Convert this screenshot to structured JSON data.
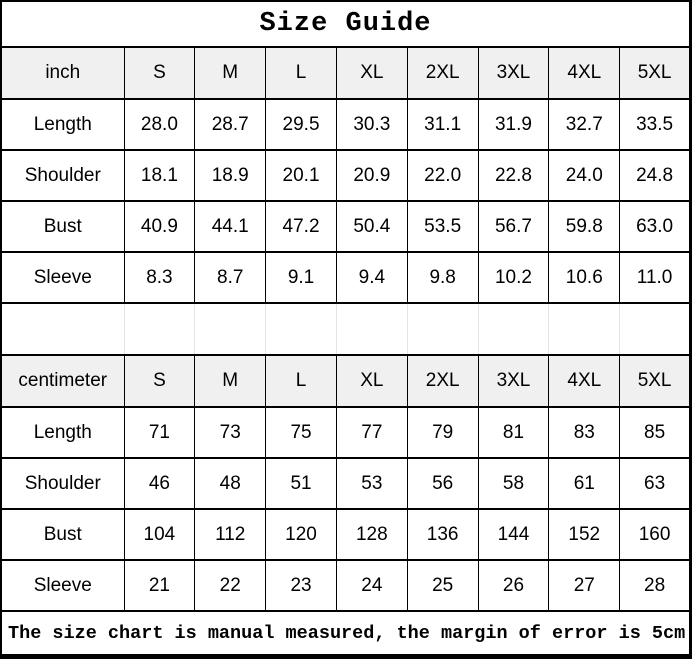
{
  "colors": {
    "header_bg": "#f0f0f0",
    "border": "#000000",
    "gap_line": "#e3e3e3"
  },
  "chart_data": {
    "type": "table",
    "title": "Size Guide",
    "size_labels": [
      "S",
      "M",
      "L",
      "XL",
      "2XL",
      "3XL",
      "4XL",
      "5XL"
    ],
    "tables": [
      {
        "unit": "inch",
        "rows": [
          {
            "label": "Length",
            "values": [
              "28.0",
              "28.7",
              "29.5",
              "30.3",
              "31.1",
              "31.9",
              "32.7",
              "33.5"
            ]
          },
          {
            "label": "Shoulder",
            "values": [
              "18.1",
              "18.9",
              "20.1",
              "20.9",
              "22.0",
              "22.8",
              "24.0",
              "24.8"
            ]
          },
          {
            "label": "Bust",
            "values": [
              "40.9",
              "44.1",
              "47.2",
              "50.4",
              "53.5",
              "56.7",
              "59.8",
              "63.0"
            ]
          },
          {
            "label": "Sleeve",
            "values": [
              "8.3",
              "8.7",
              "9.1",
              "9.4",
              "9.8",
              "10.2",
              "10.6",
              "11.0"
            ]
          }
        ]
      },
      {
        "unit": "centimeter",
        "rows": [
          {
            "label": "Length",
            "values": [
              "71",
              "73",
              "75",
              "77",
              "79",
              "81",
              "83",
              "85"
            ]
          },
          {
            "label": "Shoulder",
            "values": [
              "46",
              "48",
              "51",
              "53",
              "56",
              "58",
              "61",
              "63"
            ]
          },
          {
            "label": "Bust",
            "values": [
              "104",
              "112",
              "120",
              "128",
              "136",
              "144",
              "152",
              "160"
            ]
          },
          {
            "label": "Sleeve",
            "values": [
              "21",
              "22",
              "23",
              "24",
              "25",
              "26",
              "27",
              "28"
            ]
          }
        ]
      }
    ],
    "note": "The size chart is manual measured, the margin of error is 5cm"
  }
}
